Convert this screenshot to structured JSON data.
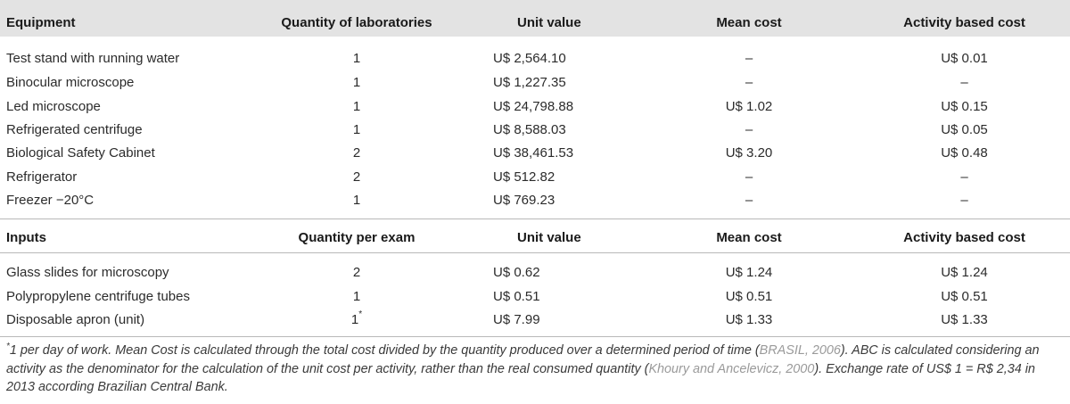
{
  "equipment_header": {
    "col1": "Equipment",
    "col2": "Quantity of laboratories",
    "col3": "Unit value",
    "col4": "Mean cost",
    "col5": "Activity based cost"
  },
  "equipment_rows": [
    {
      "name": "Test stand with running water",
      "qty": "1",
      "unit": "U$ 2,564.10",
      "mean": "–",
      "abc": "U$ 0.01"
    },
    {
      "name": "Binocular microscope",
      "qty": "1",
      "unit": "U$ 1,227.35",
      "mean": "–",
      "abc": "–"
    },
    {
      "name": "Led microscope",
      "qty": "1",
      "unit": "U$ 24,798.88",
      "mean": "U$ 1.02",
      "abc": "U$ 0.15"
    },
    {
      "name": "Refrigerated centrifuge",
      "qty": "1",
      "unit": "U$ 8,588.03",
      "mean": "–",
      "abc": "U$ 0.05"
    },
    {
      "name": "Biological Safety Cabinet",
      "qty": "2",
      "unit": "U$ 38,461.53",
      "mean": "U$ 3.20",
      "abc": "U$ 0.48"
    },
    {
      "name": "Refrigerator",
      "qty": "2",
      "unit": "U$ 512.82",
      "mean": "–",
      "abc": "–"
    },
    {
      "name": "Freezer −20°C",
      "qty": "1",
      "unit": "U$ 769.23",
      "mean": "–",
      "abc": "–"
    }
  ],
  "inputs_header": {
    "col1": "Inputs",
    "col2": "Quantity per exam",
    "col3": "Unit value",
    "col4": "Mean cost",
    "col5": "Activity based cost"
  },
  "input_rows": [
    {
      "name": "Glass slides for microscopy",
      "qty": "2",
      "qty_mark": "",
      "unit": "U$ 0.62",
      "mean": "U$ 1.24",
      "abc": "U$ 1.24"
    },
    {
      "name": "Polypropylene centrifuge tubes",
      "qty": "1",
      "qty_mark": "",
      "unit": "U$ 0.51",
      "mean": "U$ 0.51",
      "abc": "U$ 0.51"
    },
    {
      "name": "Disposable apron (unit)",
      "qty": "1",
      "qty_mark": "*",
      "unit": "U$ 7.99",
      "mean": "U$ 1.33",
      "abc": "U$ 1.33"
    }
  ],
  "footnote": {
    "marker": "*",
    "part1": "1 per day of work. Mean Cost is calculated through the total cost divided by the quantity produced over a determined period of time (",
    "cite1": "BRASIL, 2006",
    "part2": "). ABC is calculated considering an activity as the denominator for the calculation of the unit cost per activity, rather than the real consumed quantity (",
    "cite2": "Khoury and Ancelevicz, 2000",
    "part3": "). Exchange rate of US$ 1 = R$ 2,34 in 2013 according Brazilian Central Bank."
  }
}
